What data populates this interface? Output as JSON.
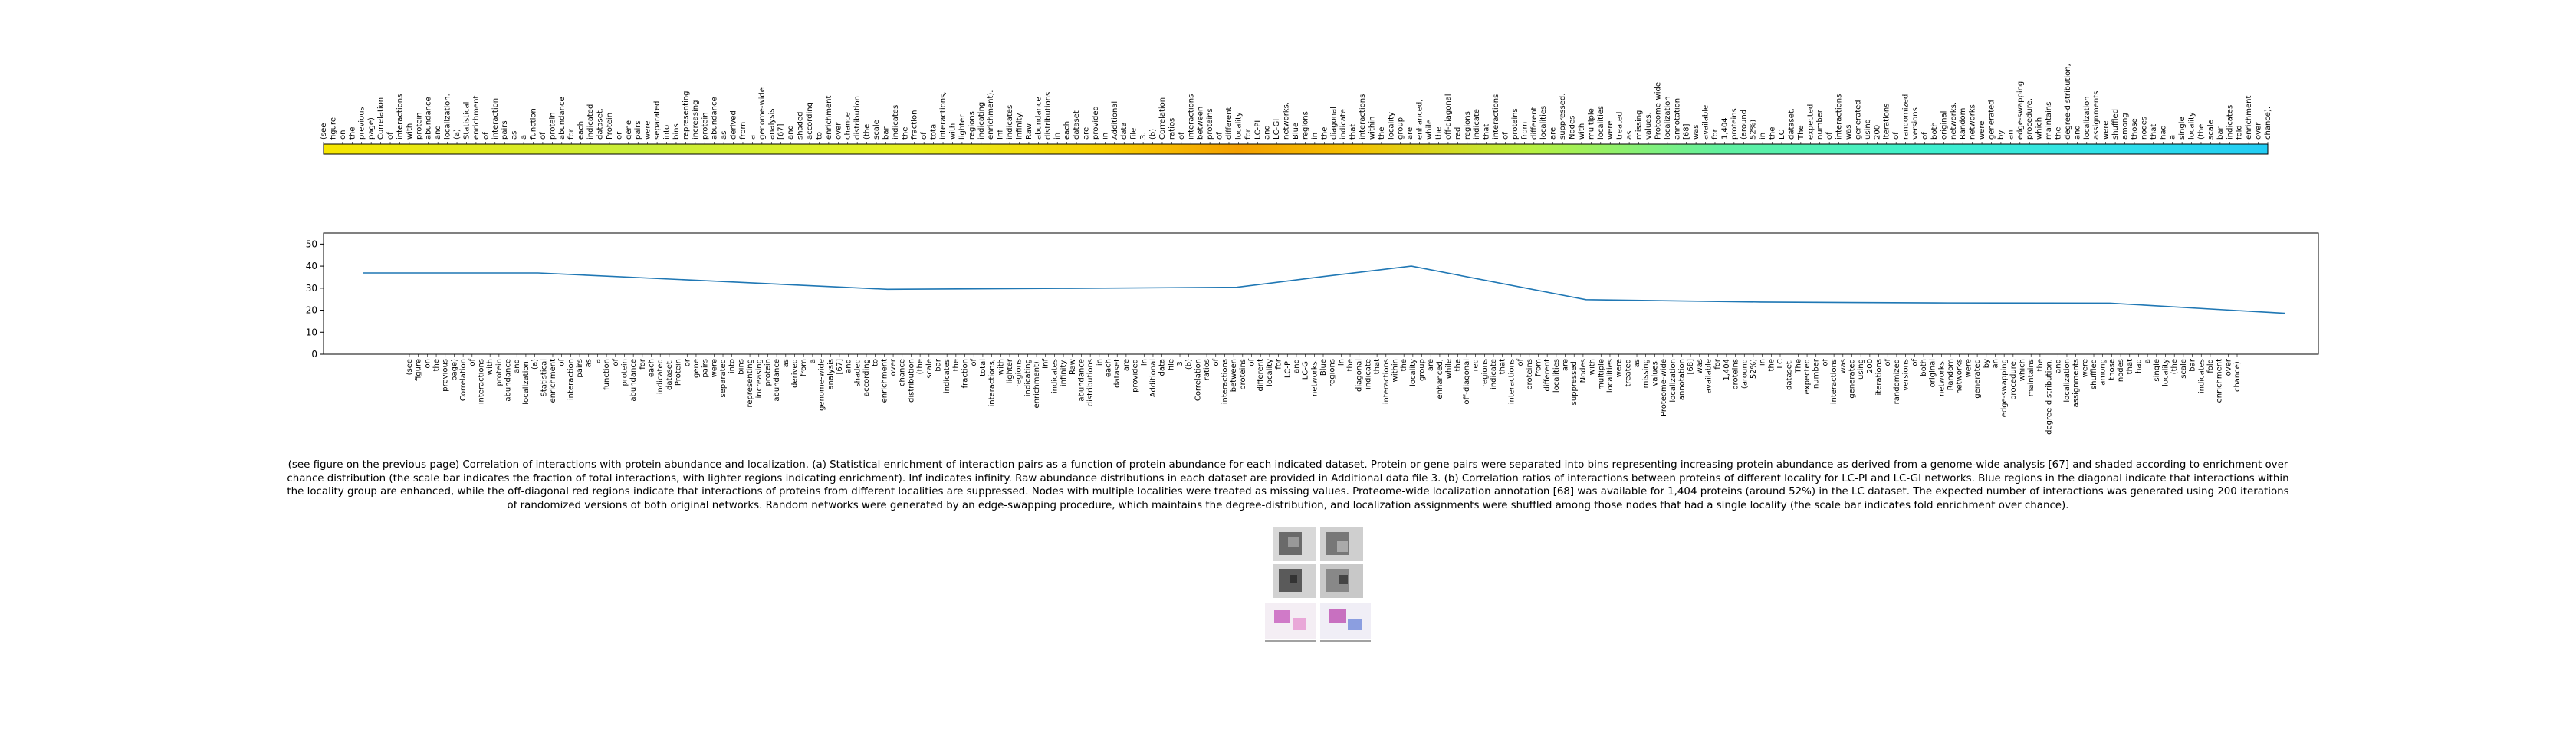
{
  "chart_data": {
    "type": "line",
    "x_tokens": [
      "(see",
      "figure",
      "on",
      "the",
      "previous",
      "page)",
      "Correlation",
      "of",
      "interactions",
      "with",
      "protein",
      "abundance",
      "and",
      "localization.",
      "(a)",
      "Statistical",
      "enrichment",
      "of",
      "interaction",
      "pairs",
      "as",
      "a",
      "function",
      "of",
      "protein",
      "abundance",
      "for",
      "each",
      "indicated",
      "dataset.",
      "Protein",
      "or",
      "gene",
      "pairs",
      "were",
      "separated",
      "into",
      "bins",
      "representing",
      "increasing",
      "protein",
      "abundance",
      "as",
      "derived",
      "from",
      "a",
      "genome-wide",
      "analysis",
      "[67]",
      "and",
      "shaded",
      "according",
      "to",
      "enrichment",
      "over",
      "chance",
      "distribution",
      "(the",
      "scale",
      "bar",
      "indicates",
      "the",
      "fraction",
      "of",
      "total",
      "interactions,",
      "with",
      "lighter",
      "regions",
      "indicating",
      "enrichment).",
      "Inf",
      "indicates",
      "infinity.",
      "Raw",
      "abundance",
      "distributions",
      "in",
      "each",
      "dataset",
      "are",
      "provided",
      "in",
      "Additional",
      "data",
      "file",
      "3.",
      "(b)",
      "Correlation",
      "ratios",
      "of",
      "interactions",
      "between",
      "proteins",
      "of",
      "different",
      "locality",
      "for",
      "LC-PI",
      "and",
      "LC-GI",
      "networks.",
      "Blue",
      "regions",
      "in",
      "the",
      "diagonal",
      "indicate",
      "that",
      "interactions",
      "within",
      "the",
      "locality",
      "group",
      "are",
      "enhanced,",
      "while",
      "the",
      "off-diagonal",
      "red",
      "regions",
      "indicate",
      "that",
      "interactions",
      "of",
      "proteins",
      "from",
      "different",
      "localities",
      "are",
      "suppressed.",
      "Nodes",
      "with",
      "multiple",
      "localities",
      "were",
      "treated",
      "as",
      "missing",
      "values.",
      "Proteome-wide",
      "localization",
      "annotation",
      "[68]",
      "was",
      "available",
      "for",
      "1,404",
      "proteins",
      "(around",
      "52%)",
      "in",
      "the",
      "LC",
      "dataset.",
      "The",
      "expected",
      "number",
      "of",
      "interactions",
      "was",
      "generated",
      "using",
      "200",
      "iterations",
      "of",
      "randomized",
      "versions",
      "of",
      "both",
      "original",
      "networks.",
      "Random",
      "networks",
      "were",
      "generated",
      "by",
      "an",
      "edge-swapping",
      "procedure,",
      "which",
      "maintains",
      "the",
      "degree-distribution,",
      "and",
      "localization",
      "assignments",
      "were",
      "shuffled",
      "among",
      "those",
      "nodes",
      "that",
      "had",
      "a",
      "single",
      "locality",
      "(the",
      "scale",
      "bar",
      "indicates",
      "fold",
      "enrichment",
      "over",
      "chance)."
    ],
    "x": [
      0,
      20,
      40,
      60,
      80,
      100,
      110,
      120,
      140,
      160,
      180,
      200,
      220
    ],
    "y": [
      36.9,
      36.9,
      33.2,
      29.5,
      29.9,
      30.4,
      35.3,
      40.0,
      24.8,
      23.7,
      23.3,
      23.2,
      18.6
    ],
    "ylim": [
      0,
      55
    ],
    "yticks": [
      0,
      10,
      20,
      30,
      40,
      50
    ],
    "line_color": "#1f77b4",
    "colorbar": "jet"
  },
  "caption": "(see figure on the previous page) Correlation of interactions with protein abundance and localization. (a) Statistical enrichment of interaction pairs as a function of protein abundance for each indicated dataset. Protein or gene pairs were separated into bins representing increasing protein abundance as derived from a genome-wide analysis [67] and shaded according to enrichment over chance distribution (the scale bar indicates the fraction of total interactions, with lighter regions indicating enrichment). Inf indicates infinity. Raw abundance distributions in each dataset are provided in Additional data file 3. (b) Correlation ratios of interactions between proteins of different locality for LC-PI and LC-GI networks. Blue regions in the diagonal indicate that interactions within the locality group are enhanced, while the off-diagonal red regions indicate that interactions of proteins from different localities are suppressed. Nodes with multiple localities were treated as missing values. Proteome-wide localization annotation [68] was available for 1,404 proteins (around 52%) in the LC dataset. The expected number of interactions was generated using 200 iterations of randomized versions of both original networks. Random networks were generated by an edge-swapping procedure, which maintains the degree-distribution, and localization assignments were shuffled among those nodes that had a single locality (the scale bar indicates fold enrichment over chance).",
  "thumbnail_name": "figure-thumbnail"
}
